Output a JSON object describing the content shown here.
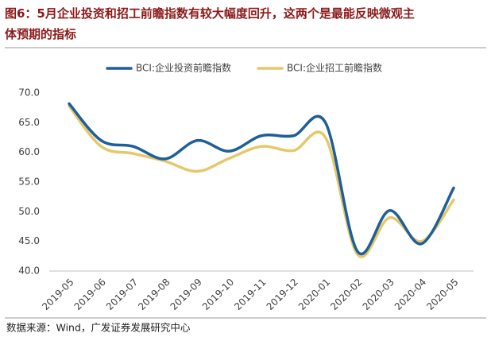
{
  "chart_data": {
    "type": "line",
    "title_lines": [
      "图6：5月企业投资和招工前瞻指数有较大幅度回升，这两个是最能反映微观主",
      "体预期的指标"
    ],
    "source": "数据来源：Wind，广发证券发展研究中心",
    "categories": [
      "2019-05",
      "2019-06",
      "2019-07",
      "2019-08",
      "2019-09",
      "2019-10",
      "2019-11",
      "2019-12",
      "2020-01",
      "2020-02",
      "2020-03",
      "2020-04",
      "2020-05"
    ],
    "series": [
      {
        "name": "BCI:企业投资前瞻指数",
        "color": "#1f5f99",
        "values": [
          68.2,
          62.0,
          61.0,
          58.9,
          62.0,
          60.2,
          62.8,
          62.8,
          65.0,
          43.3,
          50.2,
          44.6,
          54.0
        ]
      },
      {
        "name": "BCI:企业招工前瞻指数",
        "color": "#e6c86a",
        "values": [
          67.8,
          61.0,
          59.8,
          58.5,
          56.8,
          59.0,
          61.0,
          60.3,
          62.5,
          42.8,
          49.0,
          45.0,
          52.0
        ]
      }
    ],
    "ylim": [
      40,
      70
    ],
    "yticks": [
      {
        "value": 40,
        "label": "40.0"
      },
      {
        "value": 45,
        "label": "45.0"
      },
      {
        "value": 50,
        "label": "50.0"
      },
      {
        "value": 55,
        "label": "55.0"
      },
      {
        "value": 60,
        "label": "60.0"
      },
      {
        "value": 65,
        "label": "65.0"
      },
      {
        "value": 70,
        "label": "70.0"
      }
    ],
    "legend": "top"
  }
}
